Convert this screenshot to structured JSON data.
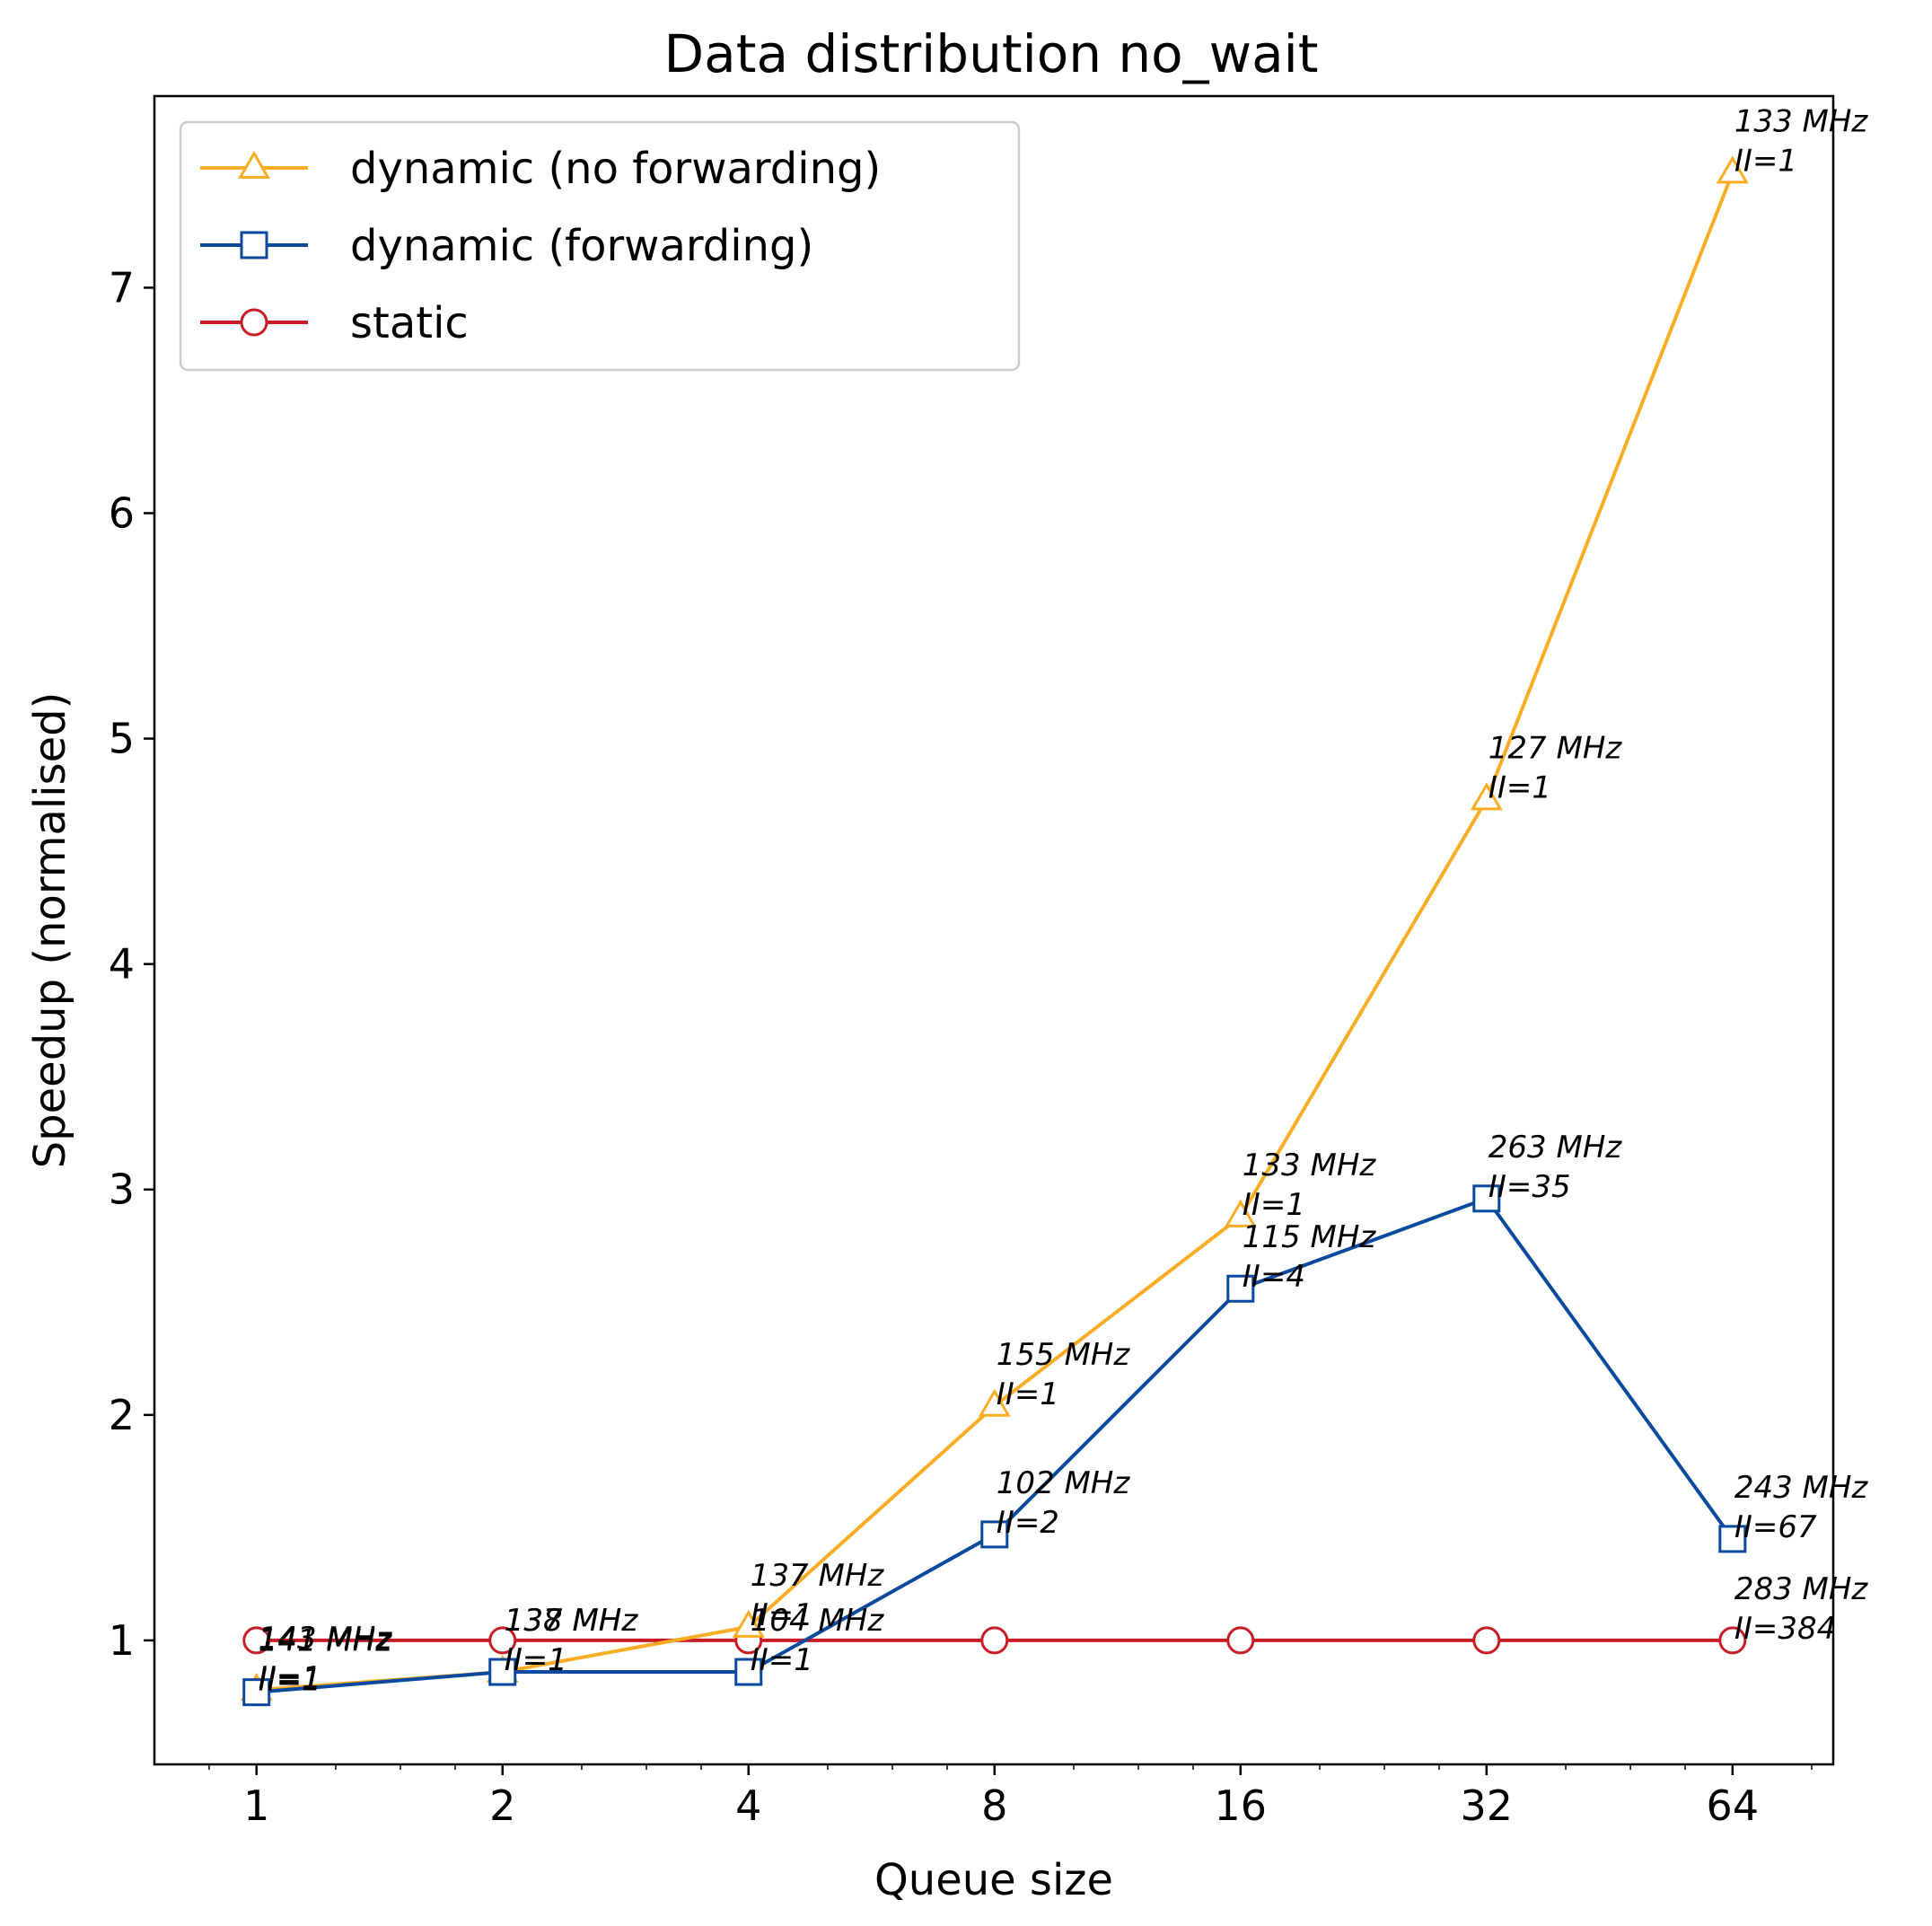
{
  "chart_data": {
    "type": "line",
    "title": "Data distribution no_wait",
    "xlabel": "Queue size",
    "ylabel": "Speedup (normalised)",
    "x_scale": "log2",
    "x": [
      1,
      2,
      4,
      8,
      16,
      32,
      64
    ],
    "x_ticks": [
      "1",
      "2",
      "4",
      "8",
      "16",
      "32",
      "64"
    ],
    "y_ticks": [
      "1",
      "2",
      "3",
      "4",
      "5",
      "6",
      "7"
    ],
    "xlim": [
      0.75,
      85
    ],
    "ylim": [
      0.45,
      7.85
    ],
    "grid": false,
    "legend_position": "top-left",
    "series": [
      {
        "name": "dynamic (no forwarding)",
        "color": "#f9ad25",
        "marker": "triangle",
        "values": [
          0.78,
          0.86,
          1.06,
          2.04,
          2.88,
          4.73,
          7.51
        ],
        "annotations": [
          {
            "freq": "143 MHz",
            "ii": "II=1"
          },
          {
            "freq": "138 MHz",
            "ii": "II=1"
          },
          {
            "freq": "137 MHz",
            "ii": "II=1"
          },
          {
            "freq": "155 MHz",
            "ii": "II=1"
          },
          {
            "freq": "133 MHz",
            "ii": "II=1"
          },
          {
            "freq": "127 MHz",
            "ii": "II=1"
          },
          {
            "freq": "133 MHz",
            "ii": "II=1"
          }
        ]
      },
      {
        "name": "dynamic (forwarding)",
        "color": "#0a4a9e",
        "marker": "square",
        "values": [
          0.77,
          0.86,
          0.86,
          1.47,
          2.56,
          2.96,
          1.45
        ],
        "annotations": [
          {
            "freq": "141 MHz",
            "ii": "II=1"
          },
          {
            "freq": "137 MHz",
            "ii": "II=1"
          },
          {
            "freq": "104 MHz",
            "ii": "II=1"
          },
          {
            "freq": "102 MHz",
            "ii": "II=2"
          },
          {
            "freq": "115 MHz",
            "ii": "II=4"
          },
          {
            "freq": "263 MHz",
            "ii": "II=35"
          },
          {
            "freq": "243 MHz",
            "ii": "II=67"
          }
        ]
      },
      {
        "name": "static",
        "color": "#c81d26",
        "marker": "circle",
        "values": [
          1,
          1,
          1,
          1,
          1,
          1,
          1
        ],
        "annotations": [
          null,
          null,
          null,
          null,
          null,
          null,
          {
            "freq": "283 MHz",
            "ii": "II=384"
          }
        ]
      }
    ]
  }
}
